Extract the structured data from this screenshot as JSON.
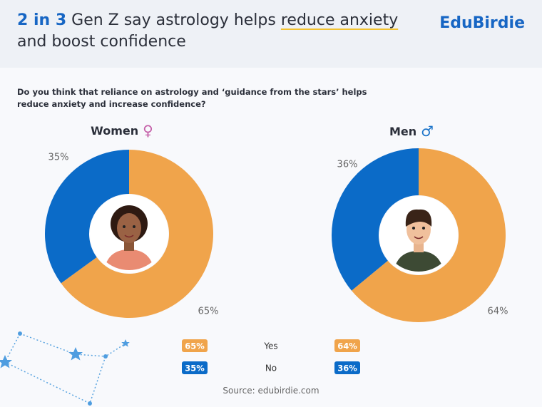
{
  "header": {
    "highlight": "2 in 3",
    "title_before": "Gen Z say astrology helps",
    "title_underlined": "reduce anxiety",
    "title_after": "and boost confidence",
    "brand": "EduBirdie"
  },
  "question": "Do you think that reliance on astrology and ‘guidance from the stars’ helps reduce anxiety and increase confidence?",
  "chart_data": [
    {
      "type": "pie",
      "title": "Women",
      "symbol": "♀",
      "symbol_color": "#c45fa8",
      "categories": [
        "Yes",
        "No"
      ],
      "values": [
        65,
        35
      ],
      "value_labels": [
        "65%",
        "35%"
      ],
      "colors": [
        "#f0a44b",
        "#0b6bc8"
      ]
    },
    {
      "type": "pie",
      "title": "Men",
      "symbol": "♂",
      "symbol_color": "#1a73c9",
      "categories": [
        "Yes",
        "No"
      ],
      "values": [
        64,
        36
      ],
      "value_labels": [
        "64%",
        "36%"
      ],
      "colors": [
        "#f0a44b",
        "#0b6bc8"
      ]
    }
  ],
  "source": "Source: edubirdie.com"
}
